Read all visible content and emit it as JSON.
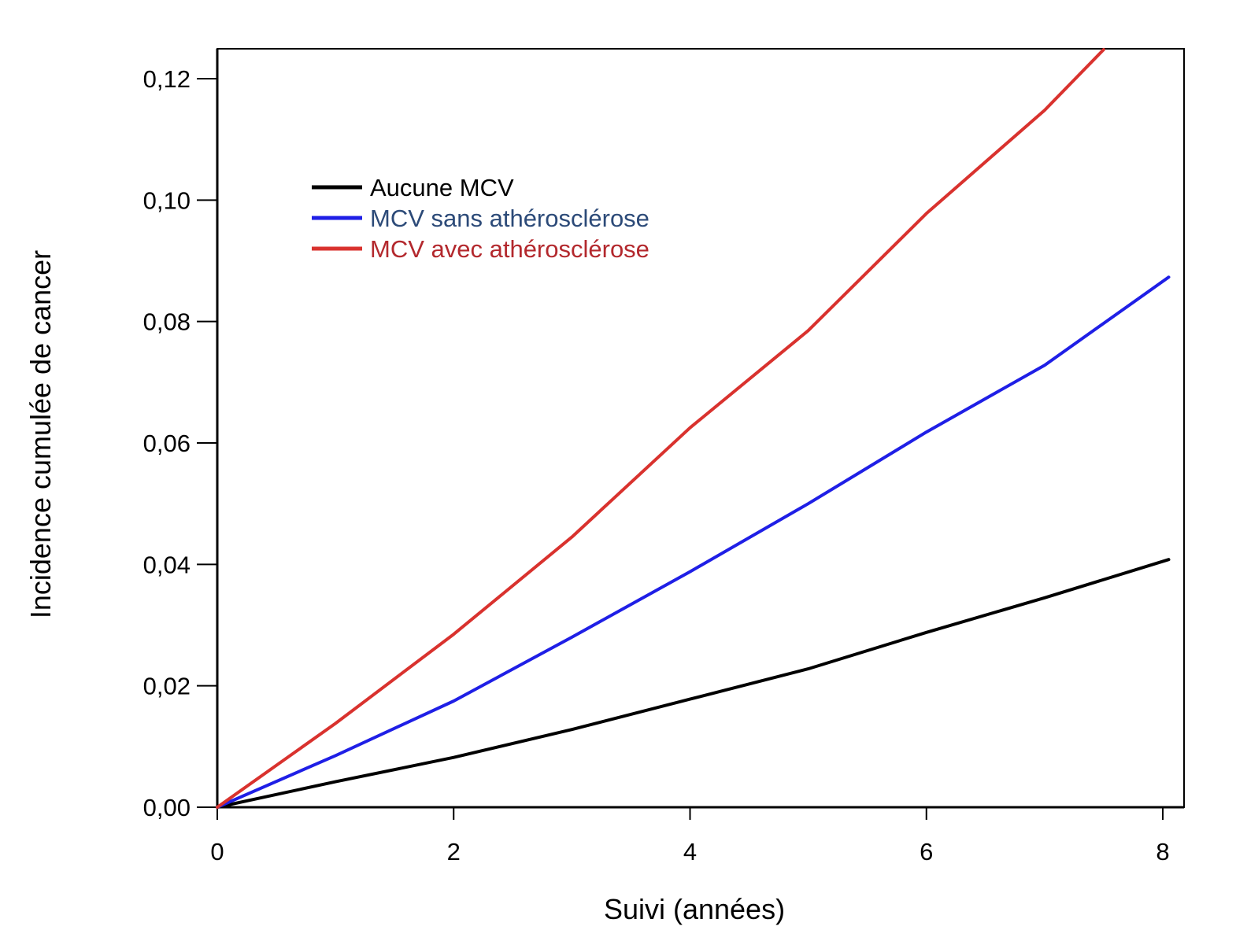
{
  "chart_data": {
    "type": "line",
    "title": "",
    "xlabel": "Suivi (années)",
    "ylabel": "Incidence cumulée de cancer",
    "xlim": [
      0,
      8.15
    ],
    "ylim": [
      0,
      0.125
    ],
    "xticks": [
      0,
      2,
      4,
      6,
      8
    ],
    "xtick_labels": [
      "0",
      "2",
      "4",
      "6",
      "8"
    ],
    "yticks": [
      0,
      0.02,
      0.04,
      0.06,
      0.08,
      0.1,
      0.12
    ],
    "ytick_labels": [
      "0,00",
      "0,02",
      "0,04",
      "0,06",
      "0,08",
      "0,10",
      "0,12"
    ],
    "grid": false,
    "legend_position": "top-left",
    "series": [
      {
        "name": "Aucune MCV",
        "color": "#000000",
        "x": [
          0,
          1,
          2,
          3,
          4,
          5,
          6,
          7,
          8.05
        ],
        "y": [
          0,
          0.0042,
          0.0082,
          0.0128,
          0.0178,
          0.0228,
          0.0288,
          0.0345,
          0.0408
        ]
      },
      {
        "name": "MCV sans athérosclérose",
        "color": "#1f1fe6",
        "x": [
          0,
          1,
          2,
          3,
          4,
          5,
          6,
          7,
          8.05
        ],
        "y": [
          0,
          0.0085,
          0.0175,
          0.028,
          0.0388,
          0.05,
          0.0618,
          0.0728,
          0.0873
        ]
      },
      {
        "name": "MCV avec athérosclérose",
        "color": "#d9322e",
        "x": [
          0,
          1,
          2,
          3,
          4,
          5,
          6,
          7,
          7.5
        ],
        "y": [
          0,
          0.0138,
          0.0285,
          0.0445,
          0.0625,
          0.0785,
          0.0978,
          0.1148,
          0.1248
        ]
      }
    ]
  },
  "legend": {
    "label_colors": [
      "#000000",
      "#2c4a78",
      "#b3282d"
    ]
  }
}
